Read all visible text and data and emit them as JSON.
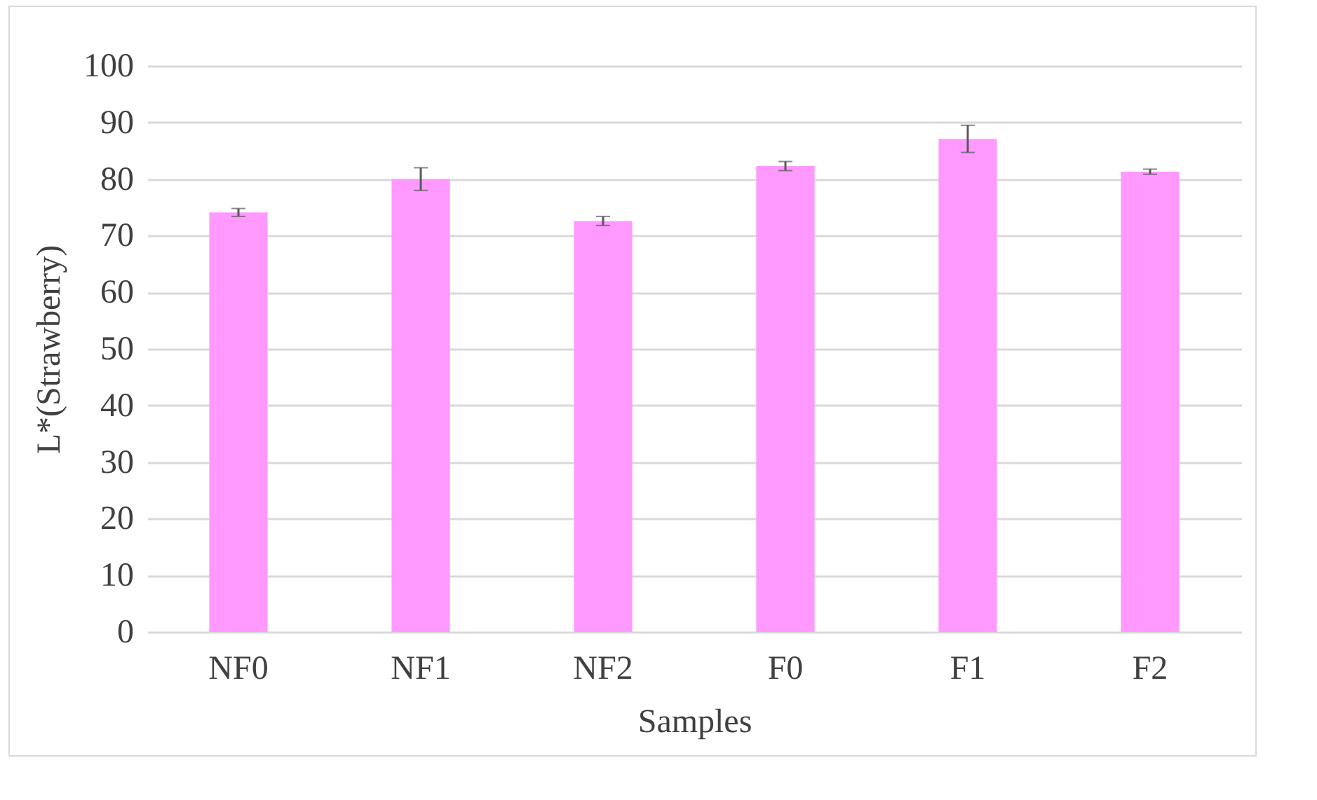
{
  "chart_data": {
    "type": "bar",
    "xlabel": "Samples",
    "ylabel": "L*(Strawberry)",
    "categories": [
      "NF0",
      "NF1",
      "NF2",
      "F0",
      "F1",
      "F2"
    ],
    "values": [
      74.1,
      80.0,
      72.6,
      82.3,
      87.1,
      81.3
    ],
    "errors": [
      0.7,
      2,
      0.8,
      0.8,
      2.4,
      0.45
    ],
    "color": "#ff99ff",
    "ylim": [
      0,
      100
    ],
    "yticks": [
      0,
      10,
      20,
      30,
      40,
      50,
      60,
      70,
      80,
      90,
      100
    ],
    "grid": "y"
  }
}
